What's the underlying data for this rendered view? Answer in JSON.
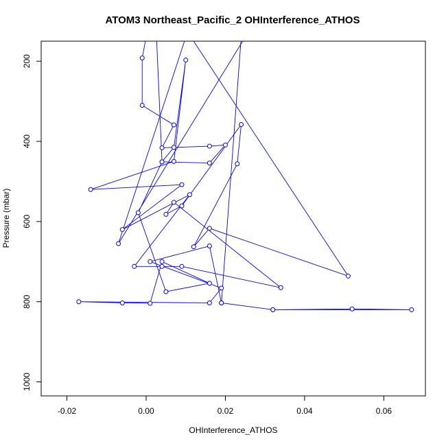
{
  "chart_data": {
    "type": "line",
    "title": "ATOM3 Northeast_Pacific_2 OHInterference_ATHOS",
    "xlabel": "OHInterference_ATHOS",
    "ylabel": "Pressure (mbar)",
    "xlim": [
      -0.0265,
      0.0705
    ],
    "ylim": [
      1035,
      150
    ],
    "y_reversed": true,
    "grid": false,
    "x_ticks": [
      -0.02,
      0.0,
      0.02,
      0.04,
      0.06
    ],
    "x_tick_labels": [
      "-0.02",
      "0.00",
      "0.02",
      "0.04",
      "0.06"
    ],
    "y_ticks": [
      200,
      400,
      600,
      800,
      1000
    ],
    "y_tick_labels": [
      "200",
      "400",
      "600",
      "800",
      "1000"
    ],
    "series_color": "#0000ff",
    "series": [
      {
        "x": [
          0.021,
          0.0,
          -0.001,
          -0.001,
          0.007,
          0.004,
          0.016,
          0.02,
          0.016,
          0.004,
          0.007,
          0.01,
          0.007,
          -0.014,
          0.009,
          -0.006,
          0.011,
          -0.003,
          0.004,
          0.009,
          0.034,
          0.007,
          0.005,
          0.009,
          0.024,
          0.023,
          0.012,
          0.016,
          0.051,
          0.002,
          0.004,
          -0.002,
          0.005,
          0.016,
          0.004,
          0.001,
          -0.006,
          -0.017,
          0.016,
          0.019,
          0.001,
          0.016,
          0.019,
          0.032,
          0.052,
          0.067,
          0.032,
          0.019,
          0.024,
          0.015,
          -0.002,
          0.01,
          -0.007,
          0.025
        ],
        "y": [
          0,
          140,
          192,
          310,
          359,
          416,
          412,
          409,
          454,
          451,
          415,
          197,
          450,
          520,
          508,
          620,
          533,
          712,
          712,
          712,
          765,
          552,
          582,
          561,
          358,
          456,
          663,
          617,
          736,
          0,
          451,
          578,
          775,
          754,
          700,
          804,
          803,
          800,
          803,
          766,
          700,
          661,
          803,
          820,
          818,
          820,
          820,
          803,
          140,
          0,
          0,
          140,
          655,
          140
        ]
      }
    ]
  }
}
